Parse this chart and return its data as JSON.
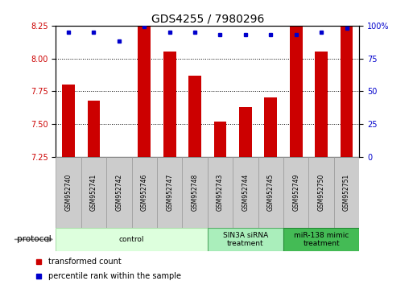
{
  "title": "GDS4255 / 7980296",
  "samples": [
    "GSM952740",
    "GSM952741",
    "GSM952742",
    "GSM952746",
    "GSM952747",
    "GSM952748",
    "GSM952743",
    "GSM952744",
    "GSM952745",
    "GSM952749",
    "GSM952750",
    "GSM952751"
  ],
  "transformed_count": [
    7.8,
    7.68,
    7.25,
    8.25,
    8.05,
    7.87,
    7.52,
    7.63,
    7.7,
    8.25,
    8.05,
    8.25
  ],
  "percentile_rank": [
    95,
    95,
    88,
    99,
    95,
    95,
    93,
    93,
    93,
    93,
    95,
    98
  ],
  "ylim_left": [
    7.25,
    8.25
  ],
  "ylim_right": [
    0,
    100
  ],
  "yticks_left": [
    7.25,
    7.5,
    7.75,
    8.0,
    8.25
  ],
  "yticks_right": [
    0,
    25,
    50,
    75,
    100
  ],
  "right_tick_labels": [
    "0",
    "25",
    "50",
    "75",
    "100%"
  ],
  "bar_color": "#cc0000",
  "dot_color": "#0000cc",
  "title_fontsize": 10,
  "tick_fontsize": 7,
  "bar_width": 0.5,
  "protocol_groups": [
    {
      "label": "control",
      "start": 0,
      "end": 6,
      "color": "#ddffdd",
      "edge_color": "#aaddaa"
    },
    {
      "label": "SIN3A siRNA\ntreatment",
      "start": 6,
      "end": 9,
      "color": "#aaeebb",
      "edge_color": "#55aa66"
    },
    {
      "label": "miR-138 mimic\ntreatment",
      "start": 9,
      "end": 12,
      "color": "#44bb55",
      "edge_color": "#228833"
    }
  ],
  "legend_items": [
    {
      "label": "transformed count",
      "color": "#cc0000"
    },
    {
      "label": "percentile rank within the sample",
      "color": "#0000cc"
    }
  ],
  "sample_box_color": "#cccccc",
  "sample_box_edge": "#999999"
}
